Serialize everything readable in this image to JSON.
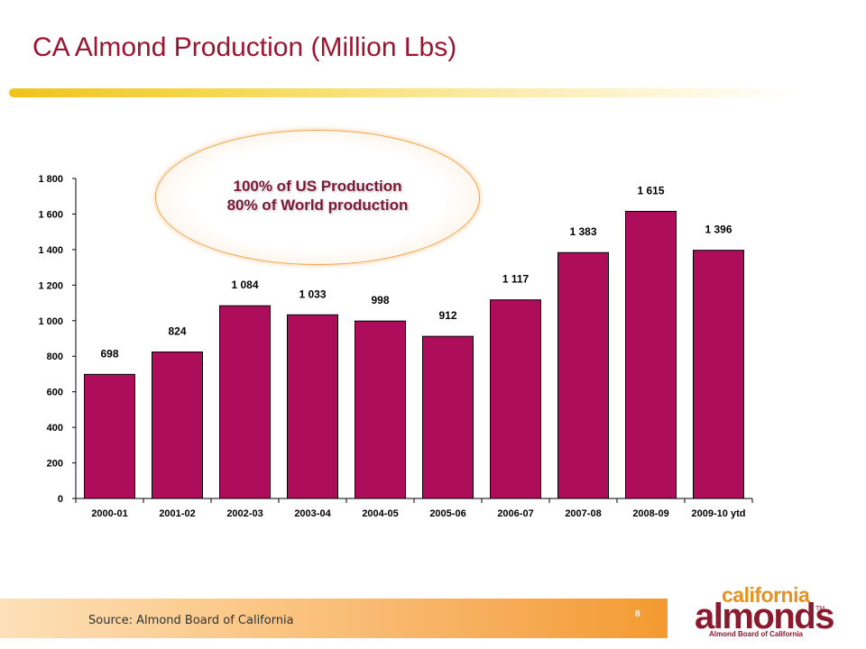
{
  "slide": {
    "title": "CA Almond Production (Million Lbs)",
    "callout_line1": "100% of US Production",
    "callout_line2": "80% of World production",
    "source": "Source: Almond Board of California",
    "page_number": "8"
  },
  "logo": {
    "california": "california",
    "almonds": "almonds",
    "tm": "TM",
    "board": "Almond Board of California"
  },
  "colors": {
    "bar": "#ad0d5a",
    "title": "#9b1530"
  },
  "chart_data": {
    "type": "bar",
    "categories": [
      "2000-01",
      "2001-02",
      "2002-03",
      "2003-04",
      "2004-05",
      "2005-06",
      "2006-07",
      "2007-08",
      "2008-09",
      "2009-10 ytd"
    ],
    "values": [
      698,
      824,
      1084,
      1033,
      998,
      912,
      1117,
      1383,
      1615,
      1396
    ],
    "value_labels": [
      "698",
      "824",
      "1 084",
      "1 033",
      "998",
      "912",
      "1 117",
      "1 383",
      "1 615",
      "1 396"
    ],
    "ylim": [
      0,
      1800
    ],
    "yticks": [
      0,
      200,
      400,
      600,
      800,
      1000,
      1200,
      1400,
      1600,
      1800
    ],
    "ytick_labels": [
      "0",
      "200",
      "400",
      "600",
      "800",
      "1 000",
      "1 200",
      "1 400",
      "1 600",
      "1 800"
    ],
    "title": "",
    "xlabel": "",
    "ylabel": "",
    "grid": false,
    "legend": "none"
  }
}
